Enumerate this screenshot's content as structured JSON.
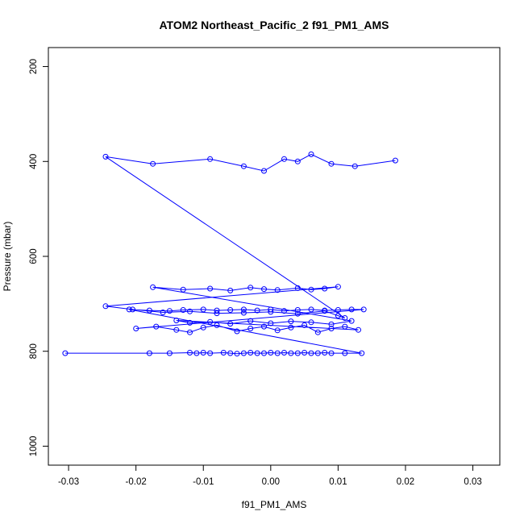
{
  "chart_data": {
    "type": "scatter",
    "title": "ATOM2 Northeast_Pacific_2 f91_PM1_AMS",
    "xlabel": "f91_PM1_AMS",
    "ylabel": "Pressure (mbar)",
    "xlim": [
      -0.033,
      0.034
    ],
    "ylim": [
      1040,
      160
    ],
    "y_reversed": true,
    "x_ticks": [
      -0.03,
      -0.02,
      -0.01,
      0.0,
      0.01,
      0.02,
      0.03
    ],
    "x_tick_labels": [
      "-0.03",
      "-0.02",
      "-0.01",
      "0.00",
      "0.01",
      "0.02",
      "0.03"
    ],
    "y_ticks": [
      200,
      400,
      600,
      800,
      1000
    ],
    "y_tick_labels": [
      "200",
      "400",
      "600",
      "800",
      "1000"
    ],
    "grid": false,
    "legend": "none",
    "color": "#0000ff",
    "marker": "open-circle",
    "connected": true,
    "series": [
      {
        "x": [
          -0.0305,
          -0.018,
          -0.015,
          -0.012,
          -0.011,
          -0.01,
          -0.009,
          -0.007,
          -0.006,
          -0.005,
          -0.004,
          -0.003,
          -0.002,
          -0.001,
          0.0,
          0.001,
          0.002,
          0.003,
          0.004,
          0.005,
          0.006,
          0.007,
          0.008,
          0.009,
          0.011,
          0.0135,
          -0.021,
          -0.018,
          -0.015,
          -0.013,
          -0.01,
          -0.008,
          -0.006,
          -0.004,
          -0.002,
          0.0,
          0.002,
          0.004,
          0.006,
          0.008,
          0.01,
          0.012,
          0.0138,
          -0.02,
          -0.017,
          -0.014,
          -0.012,
          -0.01,
          -0.008,
          -0.005,
          -0.003,
          -0.001,
          0.001,
          0.003,
          0.005,
          0.007,
          0.009,
          0.011,
          0.013,
          -0.014,
          -0.012,
          -0.009,
          -0.006,
          -0.003,
          0.0,
          0.003,
          0.006,
          0.009,
          0.012,
          -0.0175,
          -0.013,
          -0.009,
          -0.006,
          -0.003,
          -0.001,
          0.001,
          0.004,
          0.006,
          0.008,
          0.01,
          -0.0245,
          -0.0205,
          -0.016,
          -0.012,
          -0.008,
          -0.004,
          0.0,
          0.004,
          0.008,
          0.01,
          0.011,
          -0.0245,
          -0.0175,
          -0.009,
          -0.004,
          -0.001,
          0.002,
          0.004,
          0.006,
          0.009,
          0.0125,
          0.0185
        ],
        "y": [
          804,
          804,
          804,
          803,
          804,
          803,
          804,
          803,
          804,
          805,
          804,
          803,
          804,
          804,
          803,
          804,
          803,
          804,
          804,
          803,
          804,
          804,
          803,
          804,
          804,
          804,
          712,
          714,
          715,
          713,
          712,
          714,
          713,
          712,
          714,
          712,
          715,
          713,
          712,
          714,
          713,
          712,
          712,
          752,
          748,
          755,
          760,
          750,
          745,
          758,
          752,
          748,
          756,
          750,
          745,
          760,
          752,
          748,
          755,
          735,
          740,
          738,
          742,
          736,
          741,
          737,
          739,
          743,
          736,
          665,
          670,
          668,
          672,
          666,
          669,
          671,
          667,
          670,
          668,
          664,
          705,
          712,
          718,
          716,
          720,
          719,
          717,
          721,
          715,
          725,
          730,
          390,
          405,
          395,
          410,
          420,
          395,
          400,
          385,
          405,
          410,
          398
        ]
      }
    ]
  }
}
